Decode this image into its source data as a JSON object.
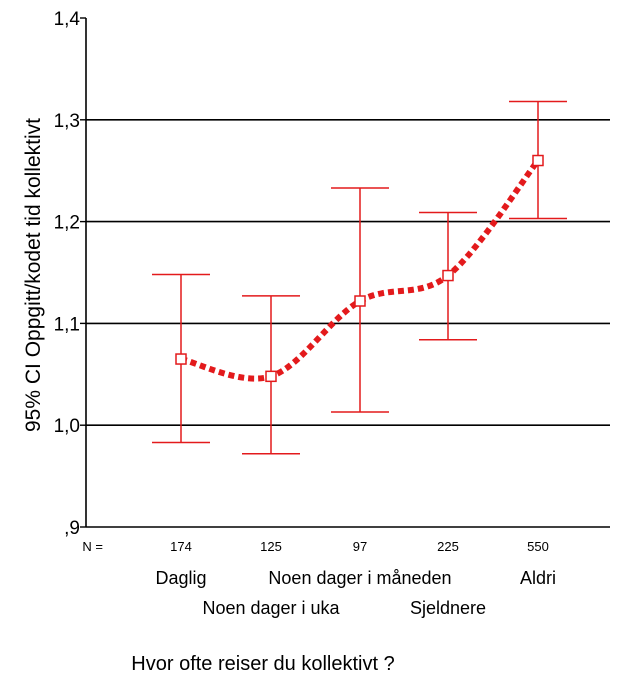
{
  "chart_data": {
    "type": "errorbar",
    "title": "",
    "ylabel": "95% CI Oppgitt/kodet tid kollektivt",
    "xlabel": "Hvor ofte reiser du kollektivt ?",
    "ylim": [
      0.9,
      1.4
    ],
    "y_ticks": [
      ",9",
      "1,0",
      "1,1",
      "1,2",
      "1,3",
      "1,4"
    ],
    "y_tick_values": [
      0.9,
      1.0,
      1.1,
      1.2,
      1.3,
      1.4
    ],
    "grid": "horizontal",
    "n_prefix": "N =",
    "categories": [
      "Daglig",
      "Noen dager i uka",
      "Noen dager i måneden",
      "Sjeldnere",
      "Aldri"
    ],
    "n": [
      "174",
      "125",
      "97",
      "225",
      "550"
    ],
    "mean": [
      1.065,
      1.048,
      1.122,
      1.147,
      1.26
    ],
    "lower": [
      0.983,
      0.972,
      1.013,
      1.084,
      1.203
    ],
    "upper": [
      1.148,
      1.127,
      1.233,
      1.209,
      1.318
    ],
    "color": "#e31a1c"
  }
}
